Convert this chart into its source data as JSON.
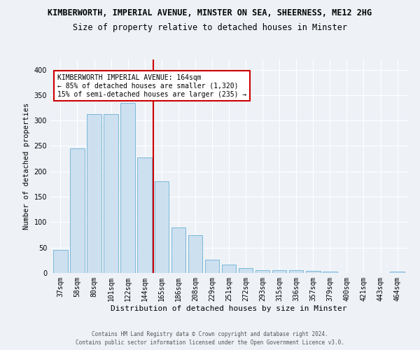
{
  "title": "KIMBERWORTH, IMPERIAL AVENUE, MINSTER ON SEA, SHEERNESS, ME12 2HG",
  "subtitle": "Size of property relative to detached houses in Minster",
  "xlabel": "Distribution of detached houses by size in Minster",
  "ylabel": "Number of detached properties",
  "footer_line1": "Contains HM Land Registry data © Crown copyright and database right 2024.",
  "footer_line2": "Contains public sector information licensed under the Open Government Licence v3.0.",
  "categories": [
    "37sqm",
    "58sqm",
    "80sqm",
    "101sqm",
    "122sqm",
    "144sqm",
    "165sqm",
    "186sqm",
    "208sqm",
    "229sqm",
    "251sqm",
    "272sqm",
    "293sqm",
    "315sqm",
    "336sqm",
    "357sqm",
    "379sqm",
    "400sqm",
    "421sqm",
    "443sqm",
    "464sqm"
  ],
  "values": [
    45,
    245,
    312,
    312,
    335,
    227,
    181,
    90,
    75,
    26,
    17,
    10,
    5,
    6,
    5,
    4,
    3,
    0,
    0,
    0,
    3
  ],
  "bar_color": "#cce0f0",
  "bar_edge_color": "#7ab8d8",
  "vline_color": "#cc0000",
  "vline_x_index": 6,
  "annotation_text": "KIMBERWORTH IMPERIAL AVENUE: 164sqm\n← 85% of detached houses are smaller (1,320)\n15% of semi-detached houses are larger (235) →",
  "annotation_box_color": "#ffffff",
  "annotation_box_edge": "#cc0000",
  "ylim": [
    0,
    420
  ],
  "yticks": [
    0,
    50,
    100,
    150,
    200,
    250,
    300,
    350,
    400
  ],
  "background_color": "#eef2f7",
  "grid_color": "#ffffff",
  "title_fontsize": 8.5,
  "subtitle_fontsize": 8.5,
  "ylabel_fontsize": 7.5,
  "xlabel_fontsize": 8,
  "tick_fontsize": 7,
  "annot_fontsize": 7,
  "footer_fontsize": 5.5
}
